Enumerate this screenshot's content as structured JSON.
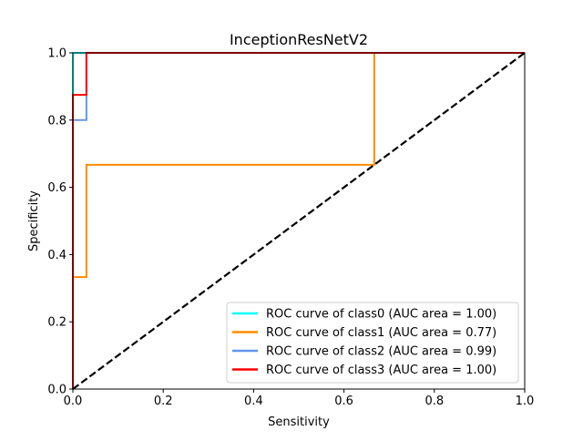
{
  "chart_data": {
    "type": "line",
    "title": "InceptionResNetV2",
    "xlabel": "Sensitivity",
    "ylabel": "Specificity",
    "xlim": [
      0,
      1
    ],
    "ylim": [
      0,
      1
    ],
    "xticks": [
      "0.0",
      "0.2",
      "0.4",
      "0.6",
      "0.8",
      "1.0"
    ],
    "yticks": [
      "0.0",
      "0.2",
      "0.4",
      "0.6",
      "0.8",
      "1.0"
    ],
    "grid": false,
    "legend_position": "lower-right",
    "series": [
      {
        "name": "ROC curve of class0 (AUC area = 1.00)",
        "color": "#00ffff",
        "x": [
          0,
          0,
          1
        ],
        "y": [
          0,
          1,
          1
        ]
      },
      {
        "name": "ROC curve of class1 (AUC area = 0.77)",
        "color": "#ff8c00",
        "x": [
          0,
          0,
          0.03,
          0.03,
          0.667,
          0.667,
          1
        ],
        "y": [
          0,
          0.333,
          0.333,
          0.667,
          0.667,
          1,
          1
        ]
      },
      {
        "name": "ROC curve of class2 (AUC area = 0.99)",
        "color": "#6495ed",
        "x": [
          0,
          0,
          0.03,
          0.03,
          1
        ],
        "y": [
          0,
          0.8,
          0.8,
          1,
          1
        ]
      },
      {
        "name": "ROC curve of class3 (AUC area = 1.00)",
        "color": "#ff0000",
        "x": [
          0,
          0,
          0.03,
          0.03,
          1
        ],
        "y": [
          0,
          0.875,
          0.875,
          1,
          1
        ]
      }
    ],
    "reference_line": {
      "color": "#000000",
      "style": "dashed",
      "x": [
        0,
        1
      ],
      "y": [
        0,
        1
      ]
    }
  }
}
